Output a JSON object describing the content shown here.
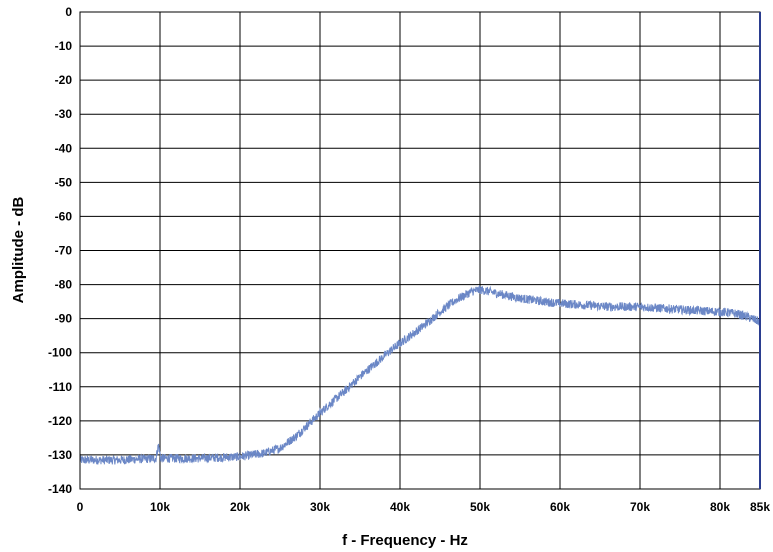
{
  "chart_data": {
    "type": "line",
    "title": "",
    "xlabel": "f - Frequency - Hz",
    "ylabel": "Amplitude - dB",
    "xlim": [
      0,
      85000
    ],
    "ylim": [
      -140,
      0
    ],
    "grid": true,
    "x_ticks": [
      {
        "value": 0,
        "label": "0"
      },
      {
        "value": 10000,
        "label": "10k"
      },
      {
        "value": 20000,
        "label": "20k"
      },
      {
        "value": 30000,
        "label": "30k"
      },
      {
        "value": 40000,
        "label": "40k"
      },
      {
        "value": 50000,
        "label": "50k"
      },
      {
        "value": 60000,
        "label": "60k"
      },
      {
        "value": 70000,
        "label": "70k"
      },
      {
        "value": 80000,
        "label": "80k"
      },
      {
        "value": 85000,
        "label": "85k"
      }
    ],
    "y_ticks": [
      {
        "value": 0,
        "label": "0"
      },
      {
        "value": -10,
        "label": "-10"
      },
      {
        "value": -20,
        "label": "-20"
      },
      {
        "value": -30,
        "label": "-30"
      },
      {
        "value": -40,
        "label": "-40"
      },
      {
        "value": -50,
        "label": "-50"
      },
      {
        "value": -60,
        "label": "-60"
      },
      {
        "value": -70,
        "label": "-70"
      },
      {
        "value": -80,
        "label": "-80"
      },
      {
        "value": -90,
        "label": "-90"
      },
      {
        "value": -100,
        "label": "-100"
      },
      {
        "value": -110,
        "label": "-110"
      },
      {
        "value": -120,
        "label": "-120"
      },
      {
        "value": -130,
        "label": "-130"
      },
      {
        "value": -140,
        "label": "-140"
      }
    ],
    "series": [
      {
        "color": "#6b87c6",
        "x": [
          0,
          5000,
          9500,
          9800,
          10100,
          15000,
          20000,
          23000,
          25000,
          27000,
          29000,
          31000,
          33000,
          35000,
          37000,
          39000,
          41000,
          43000,
          45000,
          47000,
          49000,
          50000,
          52000,
          55000,
          58000,
          60000,
          63000,
          66000,
          70000,
          73000,
          76000,
          80000,
          82000,
          83500,
          85000
        ],
        "y": [
          -131.5,
          -131.5,
          -131,
          -127,
          -131,
          -131,
          -130.5,
          -129.5,
          -128,
          -124.5,
          -120,
          -115.5,
          -111.5,
          -107,
          -103,
          -99,
          -95.5,
          -92,
          -88,
          -84.5,
          -82,
          -81.5,
          -82.5,
          -84,
          -85,
          -85.5,
          -86,
          -86.5,
          -86.5,
          -87,
          -87.5,
          -88,
          -88.5,
          -89.5,
          -91
        ]
      }
    ]
  }
}
